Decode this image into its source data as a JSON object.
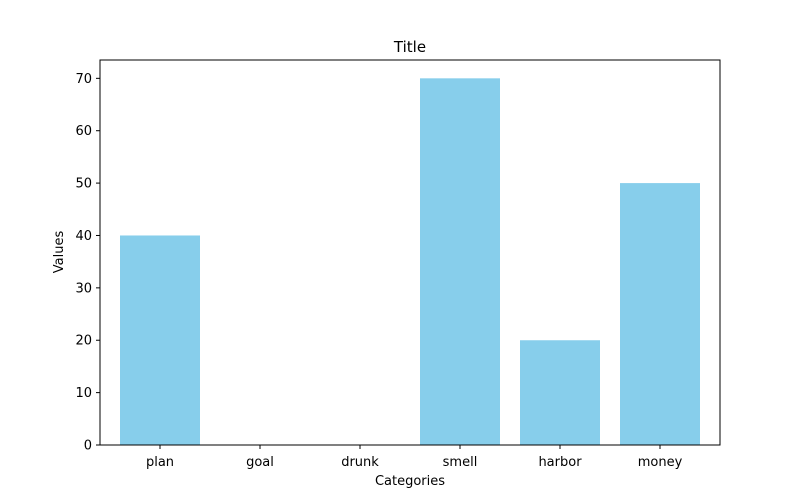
{
  "chart_data": {
    "type": "bar",
    "title": "Title",
    "xlabel": "Categories",
    "ylabel": "Values",
    "categories": [
      "plan",
      "goal",
      "drunk",
      "smell",
      "harbor",
      "money"
    ],
    "values": [
      40,
      0,
      0,
      70,
      20,
      50
    ],
    "ylim": [
      0,
      73.5
    ],
    "yticks": [
      0,
      10,
      20,
      30,
      40,
      50,
      60,
      70
    ],
    "bar_color": "#87CEEB",
    "grid": false,
    "legend": false
  }
}
